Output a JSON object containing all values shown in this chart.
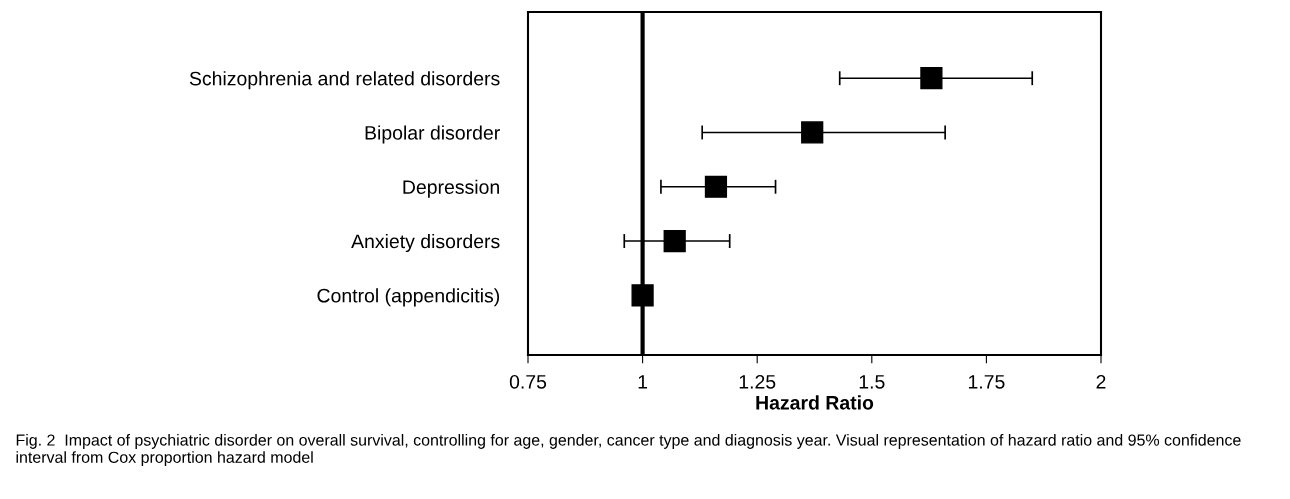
{
  "chart_data": {
    "type": "scatter",
    "orientation": "horizontal",
    "categories": [
      "Schizophrenia and related disorders",
      "Bipolar disorder",
      "Depression",
      "Anxiety disorders",
      "Control (appendicitis)"
    ],
    "values": [
      1.63,
      1.37,
      1.16,
      1.07,
      1.0
    ],
    "errors": [
      [
        1.43,
        1.85
      ],
      [
        1.13,
        1.66
      ],
      [
        1.04,
        1.29
      ],
      [
        0.96,
        1.19
      ],
      null
    ],
    "color": "#000000",
    "marker": "square",
    "xlabel": "Hazard Ratio",
    "xlim": [
      0.75,
      2
    ],
    "xticks": [
      0.75,
      1,
      1.25,
      1.5,
      1.75,
      2
    ],
    "ref_lines": [
      {
        "axis": "x",
        "value": 1,
        "color": "#000000"
      }
    ],
    "grid": false,
    "annotations": [
      "Fig. 2  Impact of psychiatric disorder on overall survival, controlling for age, gender, cancer type and diagnosis year. Visual representation of hazard ratio and 95% confidence interval from Cox proportion hazard model"
    ]
  }
}
